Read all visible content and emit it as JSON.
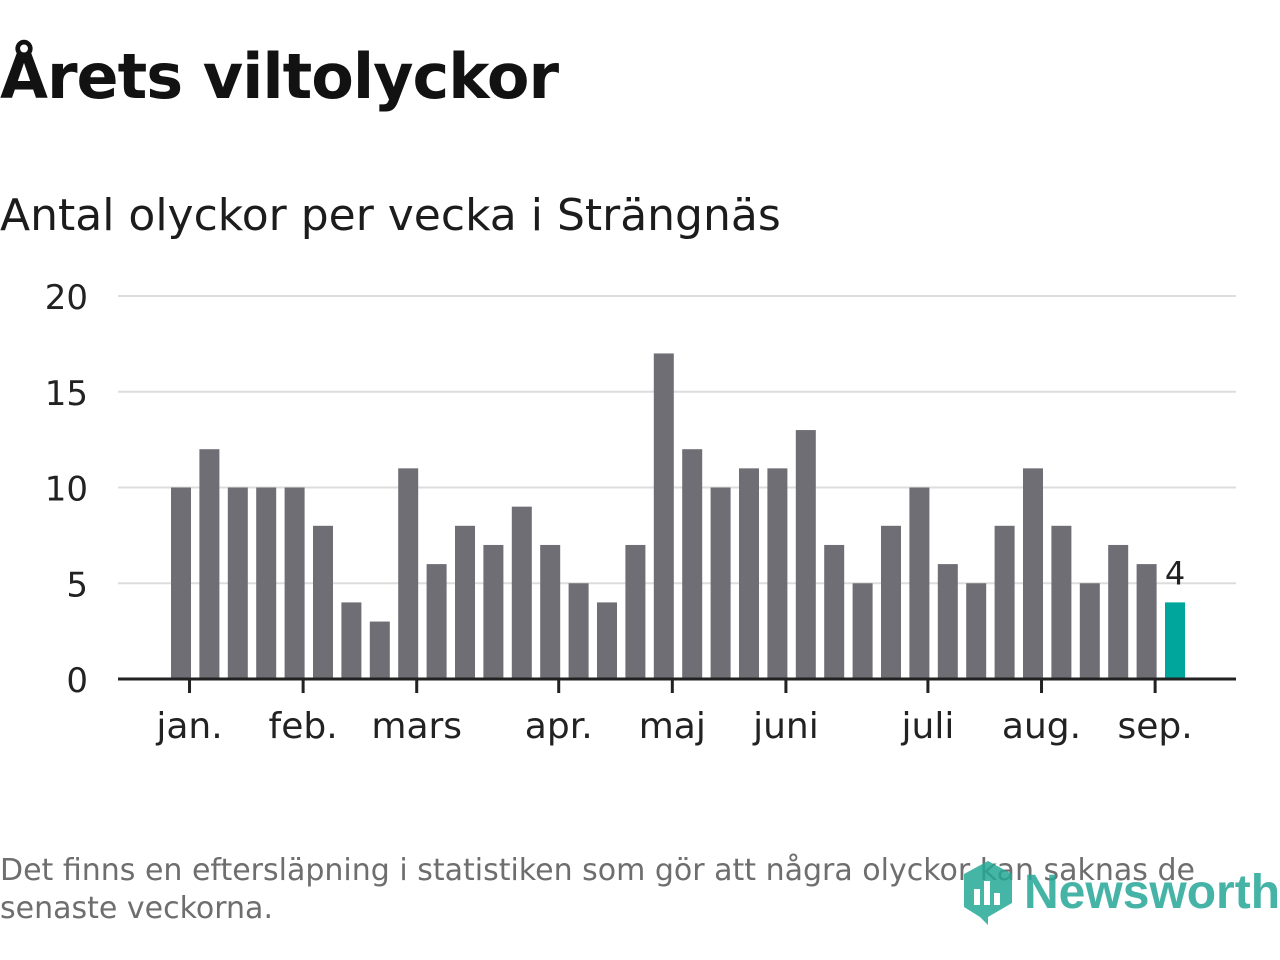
{
  "title": "Årets viltolyckor",
  "subtitle": "Antal olyckor per vecka i Strängnäs",
  "footnote": "Det finns en eftersläpning i statistiken som gör att några olyckor kan saknas de senaste veckorna.",
  "brand": {
    "name": "Newsworthy",
    "color": "#25a897",
    "icon": "newsworthy-logo-icon"
  },
  "colors": {
    "bar": "#6f6e74",
    "highlight": "#00a59b",
    "grid": "#dddddd",
    "axis": "#222222",
    "text": "#222222"
  },
  "chart_data": {
    "type": "bar",
    "title": "Antal olyckor per vecka i Strängnäs",
    "xlabel": "",
    "ylabel": "",
    "ylim": [
      0,
      20
    ],
    "yticks": [
      0,
      5,
      10,
      15,
      20
    ],
    "grid": true,
    "values": [
      10,
      12,
      10,
      10,
      10,
      8,
      4,
      3,
      11,
      6,
      8,
      7,
      9,
      7,
      5,
      4,
      7,
      17,
      12,
      10,
      11,
      11,
      13,
      7,
      5,
      8,
      10,
      6,
      5,
      8,
      11,
      8,
      5,
      7,
      6,
      4
    ],
    "highlight_index": 35,
    "highlight_label": "4",
    "month_ticks": [
      {
        "label": "jan.",
        "position": 0.3
      },
      {
        "label": "feb.",
        "position": 4.3
      },
      {
        "label": "mars",
        "position": 8.3
      },
      {
        "label": "apr.",
        "position": 13.3
      },
      {
        "label": "maj",
        "position": 17.3
      },
      {
        "label": "juni",
        "position": 21.3
      },
      {
        "label": "juli",
        "position": 26.3
      },
      {
        "label": "aug.",
        "position": 30.3
      },
      {
        "label": "sep.",
        "position": 34.3
      }
    ]
  }
}
